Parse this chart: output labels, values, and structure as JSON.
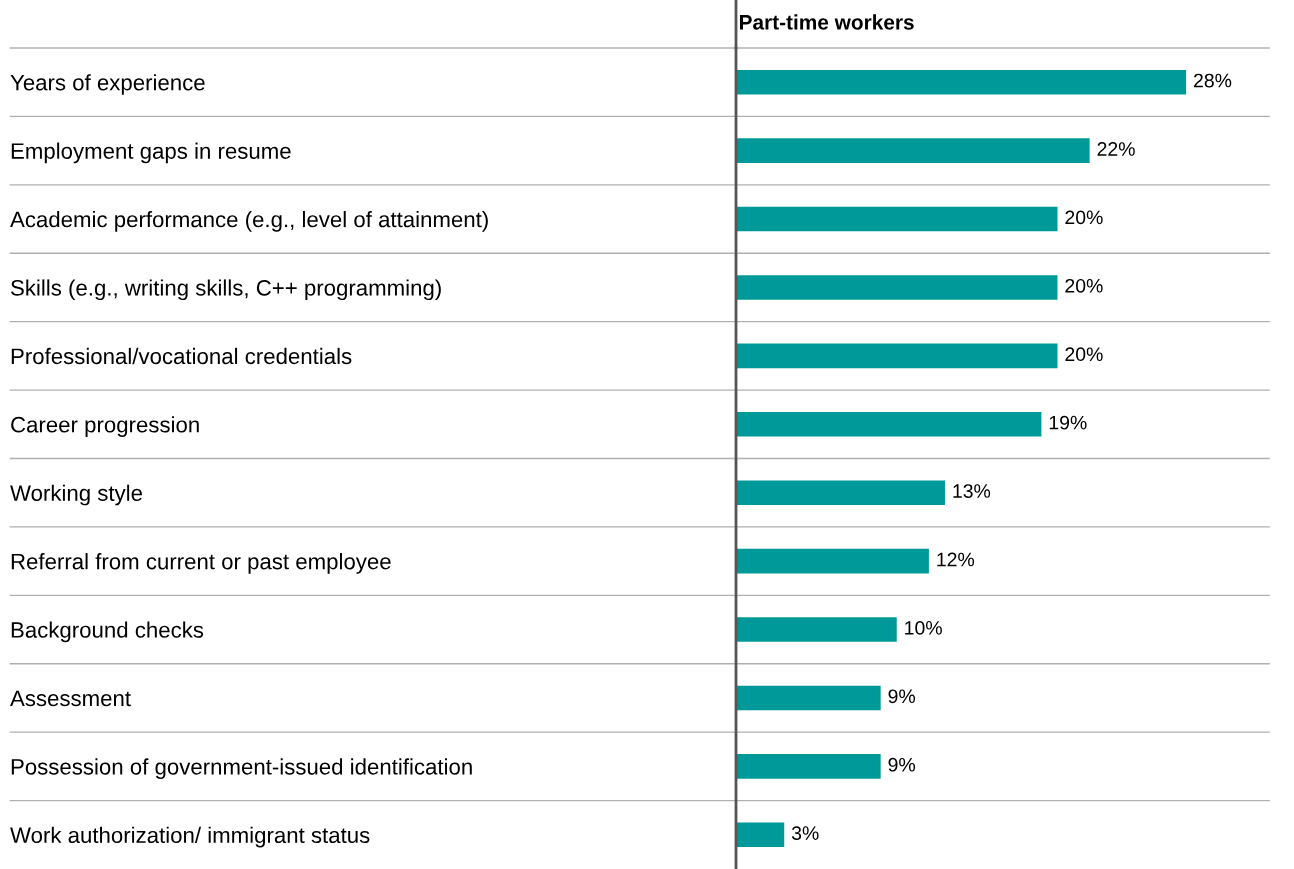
{
  "chart_data": {
    "type": "bar",
    "orientation": "horizontal",
    "title": "Part-time workers",
    "categories": [
      "Years of experience",
      "Employment gaps in resume",
      "Academic performance (e.g., level of attainment)",
      "Skills (e.g., writing skills, C++ programming)",
      "Professional/vocational credentials",
      "Career progression",
      "Working style",
      "Referral from current or past employee",
      "Background checks",
      "Assessment",
      "Possession of government-issued identification",
      "Work authorization/ immigrant status"
    ],
    "values": [
      28,
      22,
      20,
      20,
      20,
      19,
      13,
      12,
      10,
      9,
      9,
      3
    ],
    "value_labels": [
      "28%",
      "22%",
      "20%",
      "20%",
      "20%",
      "19%",
      "13%",
      "12%",
      "10%",
      "9%",
      "9%",
      "3%"
    ],
    "color": "#009999"
  }
}
